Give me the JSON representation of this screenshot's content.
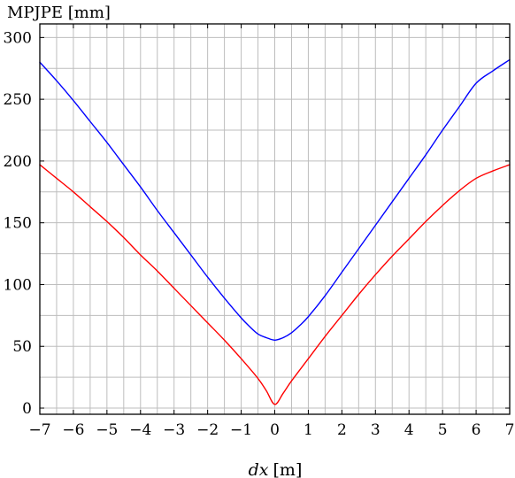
{
  "chart_data": {
    "type": "line",
    "title": "MPJPE [mm]",
    "xlabel_var": "dx",
    "xlabel_unit": "[m]",
    "xlim": [
      -7,
      7
    ],
    "ylim": [
      -5,
      311
    ],
    "grid": true,
    "x_ticks": [
      -7,
      -6,
      -5,
      -4,
      -3,
      -2,
      -1,
      0,
      1,
      2,
      3,
      4,
      5,
      6,
      7
    ],
    "x_tick_labels": [
      "−7",
      "−6",
      "−5",
      "−4",
      "−3",
      "−2",
      "−1",
      "0",
      "1",
      "2",
      "3",
      "4",
      "5",
      "6",
      "7"
    ],
    "y_ticks": [
      0,
      50,
      100,
      150,
      200,
      250,
      300
    ],
    "y_tick_labels": [
      "0",
      "50",
      "100",
      "150",
      "200",
      "250",
      "300"
    ],
    "series": [
      {
        "color": "#0000ff",
        "x": [
          -7,
          -6.5,
          -6,
          -5.5,
          -5,
          -4.5,
          -4,
          -3.5,
          -3,
          -2.5,
          -2,
          -1.5,
          -1,
          -0.75,
          -0.5,
          -0.25,
          0,
          0.25,
          0.5,
          0.75,
          1,
          1.5,
          2,
          2.5,
          3,
          3.5,
          4,
          4.5,
          5,
          5.5,
          6,
          6.5,
          7
        ],
        "values": [
          280,
          265,
          249,
          232,
          215,
          197,
          179,
          160,
          142,
          124,
          106,
          89,
          73,
          66,
          60,
          57,
          55,
          57,
          61,
          67,
          74,
          91,
          110,
          129,
          148,
          167,
          186,
          205,
          225,
          244,
          263,
          273,
          282
        ]
      },
      {
        "color": "#ff0000",
        "x": [
          -7,
          -6.5,
          -6,
          -5.5,
          -5,
          -4.5,
          -4,
          -3.5,
          -3,
          -2.5,
          -2,
          -1.5,
          -1,
          -0.5,
          -0.25,
          0,
          0.25,
          0.5,
          1,
          1.5,
          2,
          2.5,
          3,
          3.5,
          4,
          4.5,
          5,
          5.5,
          6,
          6.5,
          7
        ],
        "values": [
          197,
          186,
          175,
          163,
          151,
          138,
          124,
          111,
          97,
          83,
          69,
          55,
          40,
          24,
          14,
          3,
          12,
          22,
          40,
          58,
          75,
          92,
          108,
          123,
          137,
          151,
          164,
          176,
          186,
          192,
          197
        ]
      }
    ]
  }
}
